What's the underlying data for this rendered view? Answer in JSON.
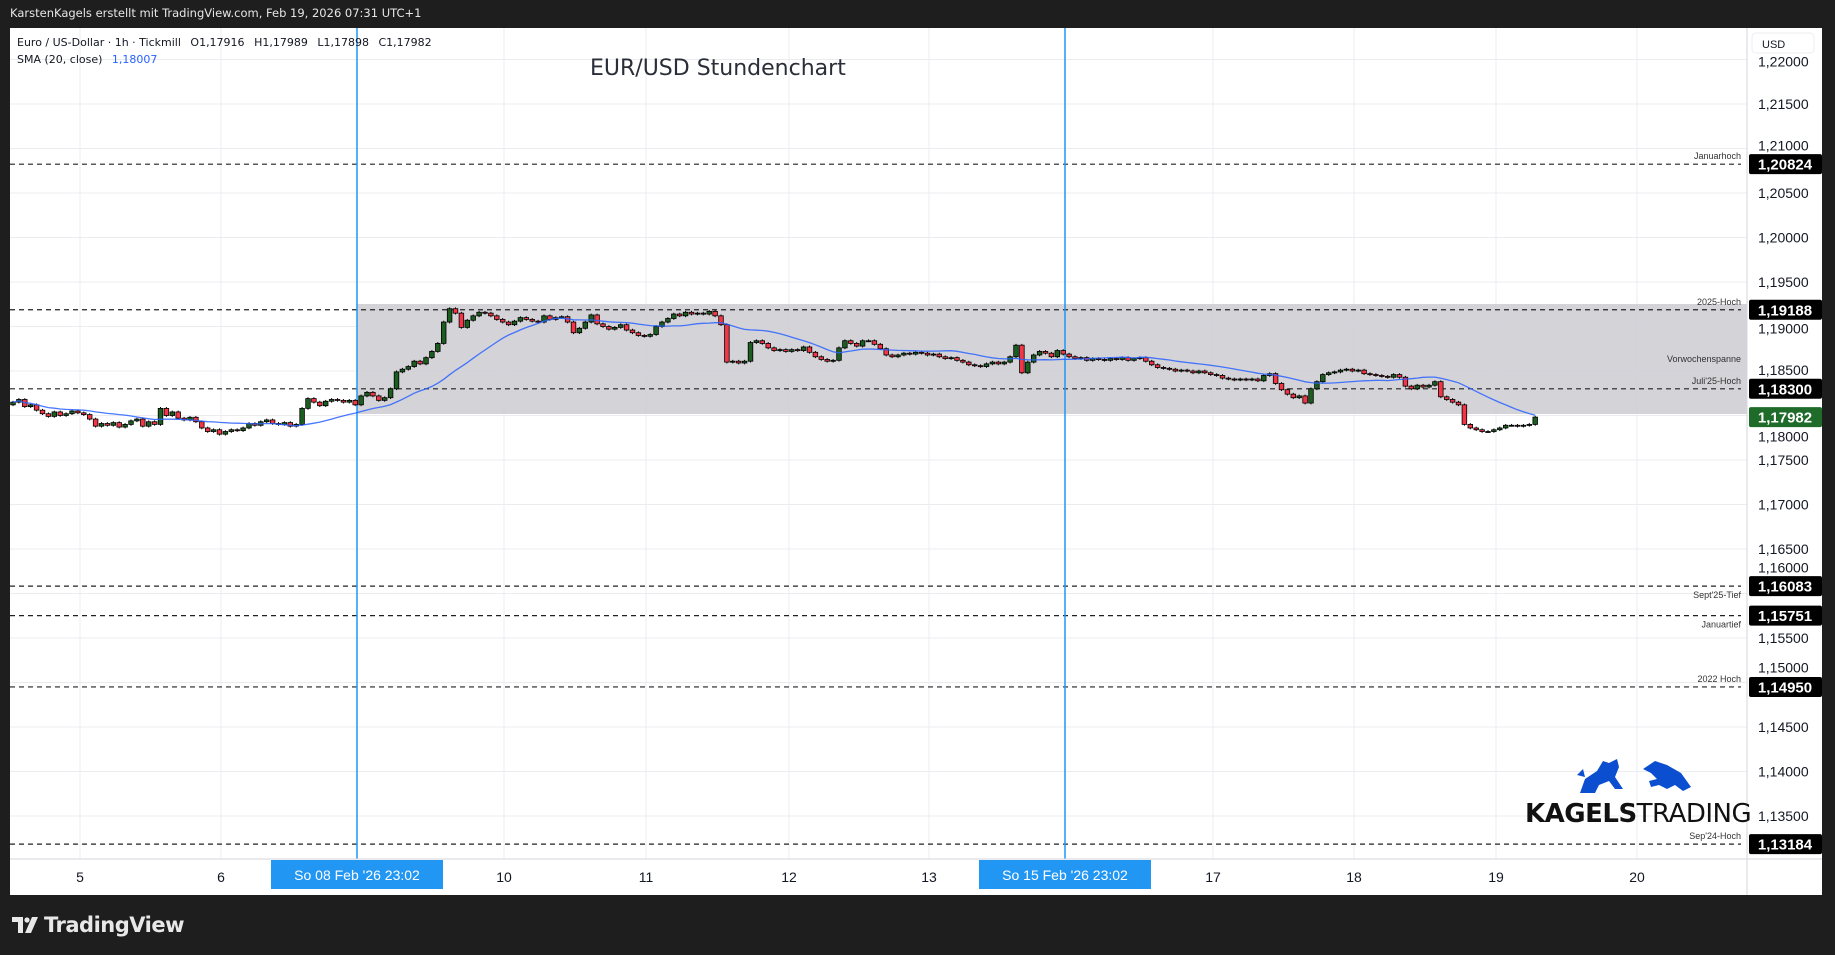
{
  "header": {
    "attribution": "KarstenKagels erstellt mit TradingView.com, Feb 19, 2026 07:31 UTC+1"
  },
  "legend": {
    "symbol": "Euro / US-Dollar · 1h · Tickmill",
    "open": "O1,17916",
    "high": "H1,17989",
    "low": "L1,17898",
    "close": "C1,17982",
    "sma_label": "SMA (20, close)",
    "sma_value": "1,18007"
  },
  "title": "EUR/USD Stundenchart",
  "footer": {
    "brand": "TradingView"
  },
  "logo": {
    "word1": "KAGELS",
    "word2": "TRADING"
  },
  "colors": {
    "up": "#1b5e20",
    "down": "#f23645",
    "sma": "#2962ff",
    "marker": "#2196f3",
    "range_fill": "#d1d1d6",
    "last_price": "#1e6b2a"
  },
  "chart_data": {
    "type": "candlestick",
    "timeframe": "1h",
    "currency": "USD",
    "ylim": [
      1.13,
      1.222
    ],
    "y_ticks": [
      "1,22000",
      "1,21500",
      "1,21000",
      "1,20500",
      "1,20000",
      "1,19500",
      "1,19000",
      "1,18500",
      "1,18000",
      "1,17500",
      "1,17000",
      "1,16500",
      "1,16000",
      "1,15500",
      "1,15000",
      "1,14500",
      "1,14000",
      "1,13500"
    ],
    "y_tick_values": [
      1.22,
      1.215,
      1.21,
      1.205,
      1.2,
      1.195,
      1.19,
      1.185,
      1.18,
      1.175,
      1.17,
      1.165,
      1.16,
      1.155,
      1.15,
      1.145,
      1.14,
      1.135
    ],
    "x_ticks": [
      "5",
      "6",
      "10",
      "11",
      "12",
      "13",
      "17",
      "18",
      "19",
      "20"
    ],
    "grid": true,
    "markers": [
      {
        "label": "So 08 Feb '26   23:02"
      },
      {
        "label": "So 15 Feb '26   23:02"
      }
    ],
    "range_box": {
      "label": "Vorwochenspanne",
      "low": 1.18017,
      "high": 1.19253
    },
    "levels": [
      {
        "name": "Januarhoch",
        "value": 1.20824,
        "text": "1,20824",
        "label_pos": "above"
      },
      {
        "name": "2025-Hoch",
        "value": 1.19188,
        "text": "1,19188",
        "label_pos": "above"
      },
      {
        "name": "Juli'25-Hoch",
        "value": 1.183,
        "text": "1,18300",
        "label_pos": "above"
      },
      {
        "name": "Sept'25-Tief",
        "value": 1.16083,
        "text": "1,16083",
        "label_pos": "below"
      },
      {
        "name": "Januartief",
        "value": 1.15751,
        "text": "1,15751",
        "label_pos": "below"
      },
      {
        "name": "2022 Hoch",
        "value": 1.1495,
        "text": "1,14950",
        "label_pos": "above"
      },
      {
        "name": "Sep'24-Hoch",
        "value": 1.13184,
        "text": "1,13184",
        "label_pos": "above"
      }
    ],
    "last_price": {
      "value": 1.17982,
      "text": "1,17982"
    },
    "sma_period": 20,
    "first_open": 1.1812,
    "closes": [
      1.1815,
      1.1818,
      1.181,
      1.1812,
      1.1806,
      1.1802,
      1.1799,
      1.1804,
      1.18,
      1.1802,
      1.1805,
      1.1803,
      1.1801,
      1.1796,
      1.1788,
      1.1791,
      1.1789,
      1.1792,
      1.1787,
      1.179,
      1.1794,
      1.1796,
      1.1788,
      1.1793,
      1.179,
      1.1808,
      1.18,
      1.1804,
      1.1797,
      1.1795,
      1.1798,
      1.1793,
      1.1786,
      1.1782,
      1.1784,
      1.1779,
      1.1782,
      1.1784,
      1.1783,
      1.1786,
      1.1791,
      1.1789,
      1.1793,
      1.1795,
      1.1791,
      1.179,
      1.1792,
      1.1788,
      1.179,
      1.1808,
      1.1819,
      1.1815,
      1.1811,
      1.1816,
      1.1818,
      1.1817,
      1.1815,
      1.1817,
      1.1812,
      1.1822,
      1.1826,
      1.1822,
      1.1817,
      1.182,
      1.183,
      1.1849,
      1.1852,
      1.1855,
      1.1861,
      1.1858,
      1.1865,
      1.1872,
      1.1881,
      1.1905,
      1.192,
      1.1915,
      1.1899,
      1.1907,
      1.1912,
      1.1916,
      1.1915,
      1.1912,
      1.1908,
      1.1905,
      1.1902,
      1.1906,
      1.191,
      1.1908,
      1.1906,
      1.1905,
      1.1912,
      1.1908,
      1.191,
      1.1911,
      1.1905,
      1.1893,
      1.1898,
      1.1905,
      1.1913,
      1.1903,
      1.19,
      1.1897,
      1.1899,
      1.1902,
      1.1896,
      1.1893,
      1.189,
      1.1889,
      1.1891,
      1.19,
      1.1905,
      1.1909,
      1.1914,
      1.1912,
      1.1916,
      1.1914,
      1.1915,
      1.1914,
      1.1917,
      1.1912,
      1.1902,
      1.186,
      1.1861,
      1.1859,
      1.1861,
      1.1882,
      1.1884,
      1.1881,
      1.1876,
      1.1873,
      1.1874,
      1.1872,
      1.1874,
      1.1873,
      1.1877,
      1.1871,
      1.1866,
      1.1863,
      1.1861,
      1.1862,
      1.1876,
      1.1884,
      1.1881,
      1.1878,
      1.1884,
      1.1884,
      1.188,
      1.1875,
      1.1868,
      1.1866,
      1.1868,
      1.187,
      1.1869,
      1.1871,
      1.187,
      1.1868,
      1.1869,
      1.1866,
      1.1864,
      1.1865,
      1.1862,
      1.186,
      1.1857,
      1.1856,
      1.1855,
      1.1858,
      1.186,
      1.1858,
      1.186,
      1.1866,
      1.1879,
      1.1848,
      1.186,
      1.1868,
      1.1872,
      1.187,
      1.1866,
      1.1873,
      1.1869,
      1.1866,
      1.1864,
      1.1865,
      1.1862,
      1.1864,
      1.1863,
      1.1862,
      1.1864,
      1.1863,
      1.1865,
      1.1862,
      1.1864,
      1.1865,
      1.1861,
      1.1857,
      1.1854,
      1.1853,
      1.1852,
      1.185,
      1.1851,
      1.185,
      1.1848,
      1.185,
      1.1848,
      1.1846,
      1.1845,
      1.1842,
      1.1841,
      1.184,
      1.1841,
      1.184,
      1.1841,
      1.1839,
      1.1845,
      1.1847,
      1.1836,
      1.1829,
      1.1824,
      1.182,
      1.1822,
      1.1814,
      1.183,
      1.1838,
      1.1846,
      1.1848,
      1.1849,
      1.1851,
      1.1852,
      1.185,
      1.1851,
      1.1847,
      1.1846,
      1.1845,
      1.1844,
      1.1843,
      1.1846,
      1.1843,
      1.1833,
      1.183,
      1.1834,
      1.1832,
      1.1834,
      1.1838,
      1.1821,
      1.1818,
      1.1815,
      1.1812,
      1.179,
      1.1786,
      1.1784,
      1.1782,
      1.1782,
      1.1784,
      1.1786,
      1.1789,
      1.1789,
      1.1788,
      1.1789,
      1.179,
      1.17982
    ]
  }
}
